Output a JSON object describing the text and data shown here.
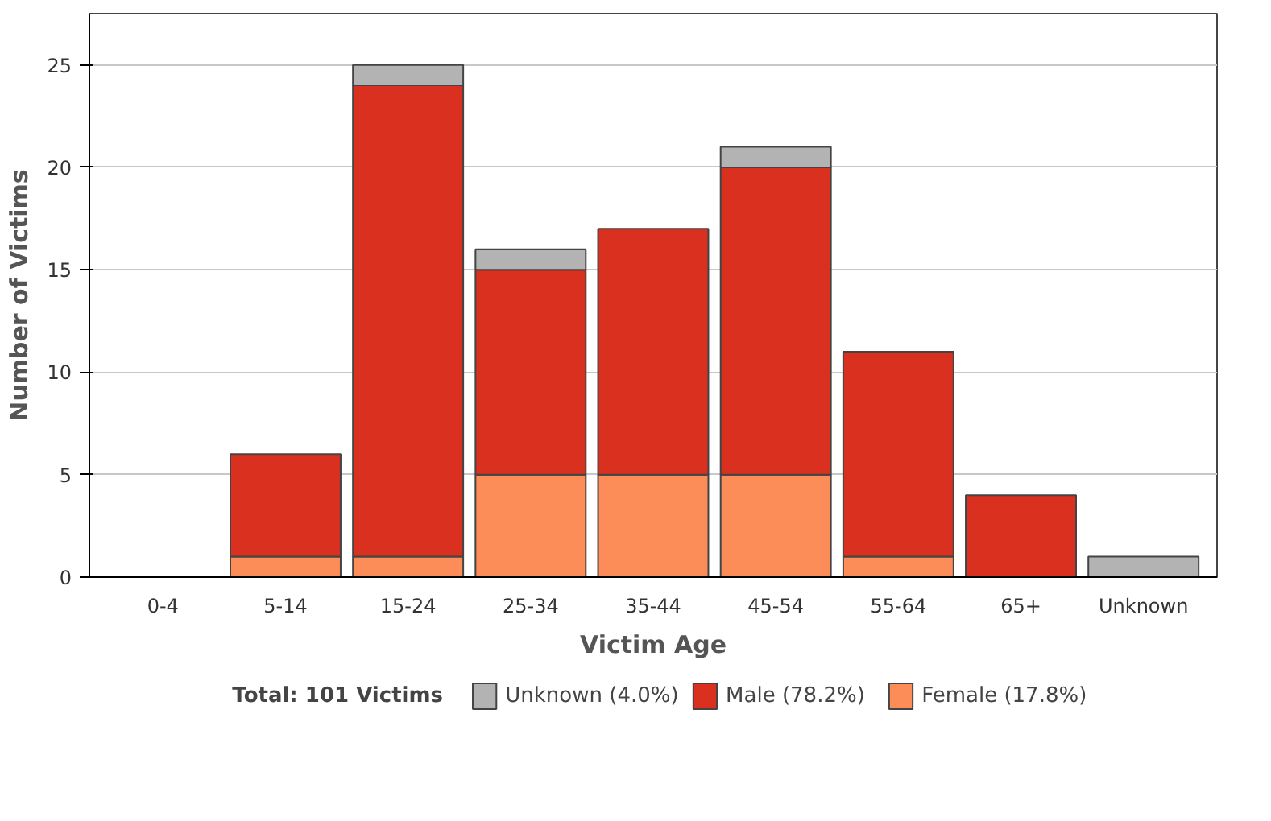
{
  "chart_data": {
    "type": "bar",
    "stacked": true,
    "xlabel": "Victim Age",
    "ylabel": "Number of Victims",
    "legend_title": "Total: 101 Victims",
    "categories": [
      "0-4",
      "5-14",
      "15-24",
      "25-34",
      "35-44",
      "45-54",
      "55-64",
      "65+",
      "Unknown"
    ],
    "series": [
      {
        "name": "Female (17.8%)",
        "color": "#fc8d59",
        "values": [
          0,
          1,
          1,
          5,
          5,
          5,
          1,
          0,
          0
        ]
      },
      {
        "name": "Male (78.2%)",
        "color": "#d93020",
        "values": [
          0,
          5,
          23,
          10,
          12,
          15,
          10,
          4,
          0
        ]
      },
      {
        "name": "Unknown (4.0%)",
        "color": "#b3b3b3",
        "values": [
          0,
          0,
          1,
          1,
          0,
          1,
          0,
          0,
          1
        ]
      }
    ],
    "ylim": [
      0,
      27.5
    ],
    "yticks": [
      0,
      5,
      10,
      15,
      20,
      25
    ],
    "grid": "y",
    "legend": "bottom"
  }
}
